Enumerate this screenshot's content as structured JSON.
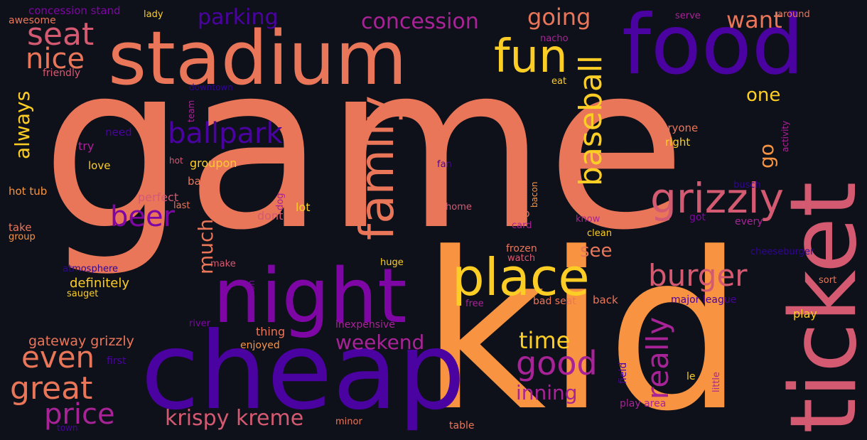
{
  "palette": {
    "background": "#0f111a",
    "salmon": "#ea7659",
    "orange": "#f89441",
    "yellow": "#fcce25",
    "pink": "#d45a72",
    "magenta": "#a82397",
    "violet": "#7e06a4",
    "indigo": "#4a02a0",
    "dark": "#2f0592"
  },
  "words": [
    {
      "text": "game"
    },
    {
      "text": "kid"
    },
    {
      "text": "stadium"
    },
    {
      "text": "food"
    },
    {
      "text": "cheap"
    },
    {
      "text": "ticket"
    },
    {
      "text": "night"
    },
    {
      "text": "place"
    },
    {
      "text": "family"
    },
    {
      "text": "fun"
    },
    {
      "text": "seat"
    },
    {
      "text": "nice"
    },
    {
      "text": "ballpark"
    },
    {
      "text": "baseball"
    },
    {
      "text": "grizzly"
    },
    {
      "text": "burger"
    },
    {
      "text": "great"
    },
    {
      "text": "even"
    },
    {
      "text": "price"
    },
    {
      "text": "good"
    },
    {
      "text": "beer"
    },
    {
      "text": "really"
    },
    {
      "text": "concession"
    },
    {
      "text": "parking"
    },
    {
      "text": "going"
    },
    {
      "text": "want"
    },
    {
      "text": "krispy kreme"
    },
    {
      "text": "weekend"
    },
    {
      "text": "time"
    },
    {
      "text": "inning"
    },
    {
      "text": "always"
    },
    {
      "text": "much"
    },
    {
      "text": "one"
    },
    {
      "text": "see"
    },
    {
      "text": "go"
    },
    {
      "text": "gateway grizzly"
    },
    {
      "text": "definitely"
    },
    {
      "text": "concession stand"
    },
    {
      "text": "awesome"
    },
    {
      "text": "friendly"
    },
    {
      "text": "downtown"
    },
    {
      "text": "team"
    },
    {
      "text": "need"
    },
    {
      "text": "try"
    },
    {
      "text": "love"
    },
    {
      "text": "hot"
    },
    {
      "text": "groupon"
    },
    {
      "text": "ball"
    },
    {
      "text": "hot tub"
    },
    {
      "text": "perfect"
    },
    {
      "text": "last"
    },
    {
      "text": "dog"
    },
    {
      "text": "dont"
    },
    {
      "text": "lot"
    },
    {
      "text": "take"
    },
    {
      "text": "group"
    },
    {
      "text": "make"
    },
    {
      "text": "atmosphere"
    },
    {
      "text": "sauget"
    },
    {
      "text": "huge"
    },
    {
      "text": "selection"
    },
    {
      "text": "river"
    },
    {
      "text": "thing"
    },
    {
      "text": "enjoyed"
    },
    {
      "text": "inexpensive"
    },
    {
      "text": "first"
    },
    {
      "text": "minor"
    },
    {
      "text": "town"
    },
    {
      "text": "table"
    },
    {
      "text": "free"
    },
    {
      "text": "bad seat"
    },
    {
      "text": "back"
    },
    {
      "text": "major league"
    },
    {
      "text": "play area"
    },
    {
      "text": "field"
    },
    {
      "text": "little"
    },
    {
      "text": "le"
    },
    {
      "text": "play"
    },
    {
      "text": "sort"
    },
    {
      "text": "cheeseburger"
    },
    {
      "text": "busch"
    },
    {
      "text": "every"
    },
    {
      "text": "got"
    },
    {
      "text": "know"
    },
    {
      "text": "clean"
    },
    {
      "text": "frozen"
    },
    {
      "text": "watch"
    },
    {
      "text": "two"
    },
    {
      "text": "card"
    },
    {
      "text": "home"
    },
    {
      "text": "bacon"
    },
    {
      "text": "fan"
    },
    {
      "text": "everyone"
    },
    {
      "text": "right"
    },
    {
      "text": "activity"
    },
    {
      "text": "nacho"
    },
    {
      "text": "eat"
    },
    {
      "text": "serve"
    },
    {
      "text": "around"
    },
    {
      "text": "lady"
    }
  ]
}
